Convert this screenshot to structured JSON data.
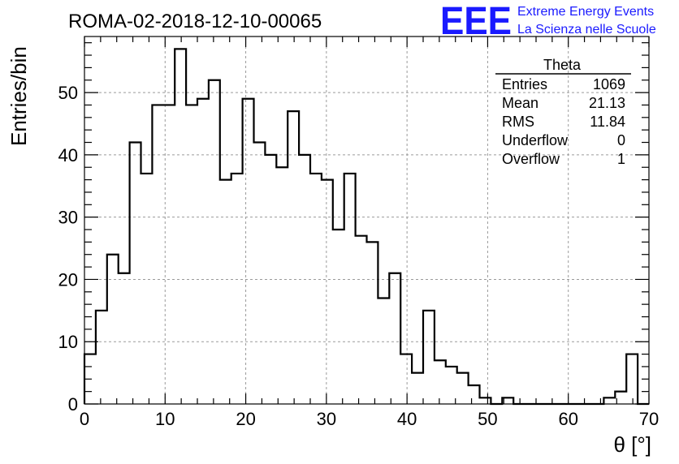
{
  "chart_data": {
    "type": "bar",
    "title": "ROMA-02-2018-12-10-00065",
    "xlabel": "θ [°]",
    "ylabel": "Entries/bin",
    "xlim": [
      0,
      70
    ],
    "ylim": [
      0,
      59
    ],
    "grid": true,
    "bin_width": 1.4,
    "values": [
      8,
      15,
      24,
      21,
      42,
      37,
      48,
      48,
      57,
      48,
      49,
      52,
      36,
      37,
      49,
      42,
      40,
      38,
      47,
      40,
      37,
      36,
      28,
      37,
      27,
      26,
      17,
      21,
      8,
      5,
      15,
      7,
      6,
      5,
      3,
      1,
      0,
      1,
      0,
      0,
      0,
      0,
      0,
      0,
      0,
      0,
      1,
      2,
      8,
      0
    ],
    "x_ticks": [
      "0",
      "10",
      "20",
      "30",
      "40",
      "50",
      "60",
      "70"
    ],
    "y_ticks": [
      "0",
      "10",
      "20",
      "30",
      "40",
      "50"
    ]
  },
  "stats": {
    "name": "Theta",
    "rows": [
      {
        "label": "Entries",
        "value": "1069"
      },
      {
        "label": "Mean",
        "value": "21.13"
      },
      {
        "label": "RMS",
        "value": "11.84"
      },
      {
        "label": "Underflow",
        "value": "0"
      },
      {
        "label": "Overflow",
        "value": "1"
      }
    ]
  },
  "logo": {
    "mark": "EEE",
    "line1": "Extreme Energy Events",
    "line2": "La Scienza nelle Scuole"
  },
  "colors": {
    "histogram": "#000000",
    "grid": "#9a9a9a",
    "logo": "#1a1aff"
  }
}
